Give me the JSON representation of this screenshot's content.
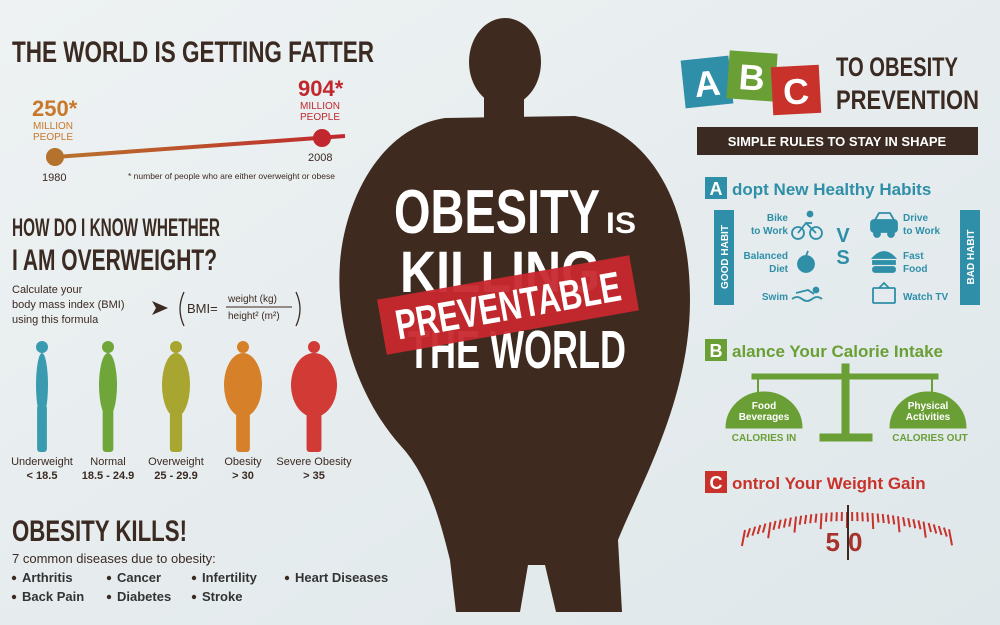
{
  "left": {
    "title": "THE WORLD IS GETTING FATTER",
    "timeline": {
      "start": {
        "value": "250*",
        "unit": [
          "MILLION",
          "PEOPLE"
        ],
        "year": "1980"
      },
      "end": {
        "value": "904*",
        "unit": [
          "MILLION",
          "PEOPLE"
        ],
        "year": "2008"
      },
      "footnote": "* number of people who are either overweight or obese"
    },
    "bmi": {
      "title": [
        "HOW DO I KNOW WHETHER",
        "I AM OVERWEIGHT?"
      ],
      "instructions": [
        "Calculate your",
        "body mass index (BMI)",
        "using this formula"
      ],
      "formula": {
        "lhs": "BMI=",
        "numerator": "weight (kg)",
        "denominator": "height² (m²)"
      },
      "categories": [
        {
          "label": "Underweight",
          "range": "< 18.5"
        },
        {
          "label": "Normal",
          "range": "18.5 - 24.9"
        },
        {
          "label": "Overweight",
          "range": "25 - 29.9"
        },
        {
          "label": "Obesity",
          "range": "> 30"
        },
        {
          "label": "Severe Obesity",
          "range": "> 35"
        }
      ]
    },
    "kills": {
      "title": "OBESITY KILLS!",
      "subtitle": "7 common diseases due to obesity:",
      "diseases": [
        "Arthritis",
        "Cancer",
        "Infertility",
        "Heart Diseases",
        "Back Pain",
        "Diabetes",
        "Stroke"
      ]
    }
  },
  "center": {
    "headline": [
      "OBESITY",
      "IS",
      "KILLING",
      "THE WORLD"
    ],
    "stamp": "PREVENTABLE"
  },
  "right": {
    "blocks": [
      "A",
      "B",
      "C"
    ],
    "title": [
      "TO OBESITY",
      "PREVENTION"
    ],
    "banner": "SIMPLE RULES TO STAY IN SHAPE",
    "section_a": {
      "letter": "A",
      "title": "dopt New Healthy Habits",
      "good_label": "GOOD HABIT",
      "bad_label": "BAD HABIT",
      "vs": "VS",
      "good": [
        [
          "Bike",
          "to Work"
        ],
        [
          "Balanced",
          "Diet"
        ],
        [
          "Swim"
        ]
      ],
      "bad": [
        [
          "Drive",
          "to Work"
        ],
        [
          "Fast",
          "Food"
        ],
        [
          "Watch TV"
        ]
      ]
    },
    "section_b": {
      "letter": "B",
      "title": "alance Your Calorie Intake",
      "left_pan": [
        "Food",
        "Beverages"
      ],
      "left_caption": "CALORIES IN",
      "right_pan": [
        "Physical",
        "Activities"
      ],
      "right_caption": "CALORIES OUT"
    },
    "section_c": {
      "letter": "C",
      "title": "ontrol Your Weight Gain",
      "dial": "50"
    }
  }
}
